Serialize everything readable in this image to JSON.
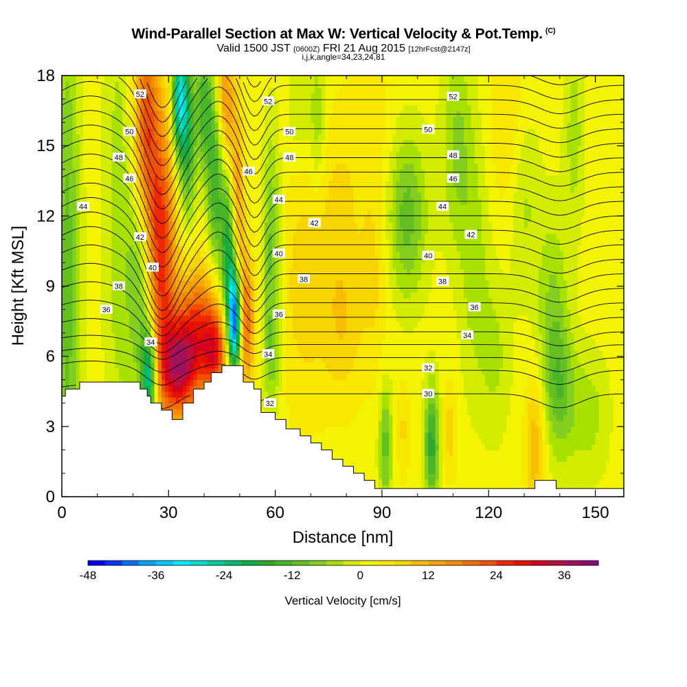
{
  "header": {
    "title": "Wind-Parallel Section at Max W: Vertical Velocity & Pot.Temp.",
    "copyright": "(C)",
    "valid_prefix": "Valid 1500 JST",
    "valid_utc": "(0600Z)",
    "valid_date": "FRI 21 Aug 2015",
    "forecast": "[12hrFcst@2147z]",
    "indices": "i,j,k,angle=34,23,24,81"
  },
  "chart_data": {
    "type": "heatmap",
    "xlabel": "Distance [nm]",
    "ylabel": "Height [Kft MSL]",
    "xlim": [
      0,
      158
    ],
    "ylim": [
      0,
      18
    ],
    "x_ticks": [
      "0",
      "30",
      "60",
      "90",
      "120",
      "150"
    ],
    "x_tick_values": [
      0,
      30,
      60,
      90,
      120,
      150
    ],
    "y_ticks": [
      "0",
      "3",
      "6",
      "9",
      "12",
      "15",
      "18"
    ],
    "y_tick_values": [
      0,
      3,
      6,
      9,
      12,
      15,
      18
    ],
    "colorbar": {
      "label": "Vertical Velocity [cm/s]",
      "ticks": [
        "-48",
        "-36",
        "-24",
        "-12",
        "0",
        "12",
        "24",
        "36"
      ],
      "tick_values": [
        -48,
        -36,
        -24,
        -12,
        0,
        12,
        24,
        36
      ],
      "levels": [
        -48,
        -45,
        -42,
        -39,
        -36,
        -33,
        -30,
        -27,
        -24,
        -21,
        -18,
        -15,
        -12,
        -9,
        -6,
        -3,
        0,
        3,
        6,
        9,
        12,
        15,
        18,
        21,
        24,
        27,
        30,
        33,
        36,
        39,
        42
      ],
      "colors": [
        "#0000f0",
        "#0035f5",
        "#0070f8",
        "#00a4f8",
        "#00c8ff",
        "#00ecf8",
        "#00dcd0",
        "#00cca0",
        "#00bc70",
        "#10ae40",
        "#30a830",
        "#48b428",
        "#64c020",
        "#84ce20",
        "#a8e000",
        "#d4ec00",
        "#f4f400",
        "#f8e800",
        "#f8d400",
        "#f8bc00",
        "#f8a400",
        "#f48c00",
        "#f07000",
        "#f05000",
        "#f02800",
        "#e81000",
        "#d40020",
        "#b81040",
        "#a0105c",
        "#8c0878"
      ]
    },
    "terrain": [
      [
        0,
        4.3
      ],
      [
        1,
        4.3
      ],
      [
        1,
        4.6
      ],
      [
        5,
        4.6
      ],
      [
        5,
        4.9
      ],
      [
        15,
        4.9
      ],
      [
        15,
        4.9
      ],
      [
        22,
        4.9
      ],
      [
        22,
        4.6
      ],
      [
        24,
        4.6
      ],
      [
        24,
        4.3
      ],
      [
        25,
        4.3
      ],
      [
        25,
        4.0
      ],
      [
        28,
        4.0
      ],
      [
        28,
        3.7
      ],
      [
        31,
        3.7
      ],
      [
        31,
        3.3
      ],
      [
        34,
        3.3
      ],
      [
        34,
        4.0
      ],
      [
        37,
        4.0
      ],
      [
        37,
        4.6
      ],
      [
        40,
        4.6
      ],
      [
        40,
        4.9
      ],
      [
        42,
        4.9
      ],
      [
        42,
        5.3
      ],
      [
        45,
        5.3
      ],
      [
        45,
        5.6
      ],
      [
        51,
        5.6
      ],
      [
        51,
        4.9
      ],
      [
        54,
        4.9
      ],
      [
        54,
        4.6
      ],
      [
        56,
        4.6
      ],
      [
        56,
        3.6
      ],
      [
        60,
        3.6
      ],
      [
        60,
        3.3
      ],
      [
        63,
        3.3
      ],
      [
        63,
        2.9
      ],
      [
        67,
        2.9
      ],
      [
        67,
        2.6
      ],
      [
        70,
        2.6
      ],
      [
        70,
        2.3
      ],
      [
        73,
        2.3
      ],
      [
        73,
        2.0
      ],
      [
        76,
        2.0
      ],
      [
        76,
        1.6
      ],
      [
        79,
        1.6
      ],
      [
        79,
        1.3
      ],
      [
        82,
        1.3
      ],
      [
        82,
        1.0
      ],
      [
        85,
        1.0
      ],
      [
        85,
        0.7
      ],
      [
        88,
        0.7
      ],
      [
        88,
        0.35
      ],
      [
        91,
        0.35
      ],
      [
        91,
        0.35
      ],
      [
        133,
        0.35
      ],
      [
        133,
        0.7
      ],
      [
        139,
        0.7
      ],
      [
        139,
        0.35
      ],
      [
        142,
        0.35
      ],
      [
        142,
        0.35
      ],
      [
        158,
        0.35
      ]
    ],
    "features": [
      {
        "x": 1.5,
        "z": 9,
        "w": -12,
        "sx": 2.5,
        "sz": 9
      },
      {
        "x": 16,
        "z": 12,
        "w": -6,
        "sx": 3,
        "sz": 8
      },
      {
        "x": 22,
        "z": 9.5,
        "w": -12,
        "sx": 2.5,
        "sz": 3.5
      },
      {
        "x": 24.5,
        "z": 5.2,
        "w": -28,
        "sx": 1.6,
        "sz": 1.5
      },
      {
        "x": 28,
        "z": 10.5,
        "w": 24,
        "sx": 2.8,
        "sz": 4
      },
      {
        "x": 23.5,
        "z": 15.8,
        "w": 21,
        "sx": 2.5,
        "sz": 3.5
      },
      {
        "x": 33,
        "z": 17,
        "w": -30,
        "sx": 1.4,
        "sz": 1.8
      },
      {
        "x": 35.5,
        "z": 15.5,
        "w": -18,
        "sx": 1.5,
        "sz": 2.5
      },
      {
        "x": 33,
        "z": 5.5,
        "w": 30,
        "sx": 4,
        "sz": 1.5
      },
      {
        "x": 38,
        "z": 7.5,
        "w": 18,
        "sx": 4,
        "sz": 1.8
      },
      {
        "x": 43,
        "z": 6.2,
        "w": 22,
        "sx": 2.5,
        "sz": 1.3
      },
      {
        "x": 48.5,
        "z": 7.5,
        "w": -42,
        "sx": 1.2,
        "sz": 1.5
      },
      {
        "x": 47,
        "z": 10.5,
        "w": -24,
        "sx": 1.6,
        "sz": 2.5
      },
      {
        "x": 43,
        "z": 13.5,
        "w": -16,
        "sx": 1.6,
        "sz": 2.5
      },
      {
        "x": 40,
        "z": 16.8,
        "w": -15,
        "sx": 1.6,
        "sz": 2
      },
      {
        "x": 52,
        "z": 7.5,
        "w": 18,
        "sx": 1.5,
        "sz": 2
      },
      {
        "x": 49,
        "z": 12.5,
        "w": 16,
        "sx": 1.5,
        "sz": 3
      },
      {
        "x": 46,
        "z": 17,
        "w": 14,
        "sx": 1.6,
        "sz": 2
      },
      {
        "x": 59,
        "z": 10.5,
        "w": -12,
        "sx": 1.8,
        "sz": 3.5
      },
      {
        "x": 59,
        "z": 6,
        "w": -6,
        "sx": 2,
        "sz": 1.5
      },
      {
        "x": 67,
        "z": 17,
        "w": -5,
        "sx": 2.5,
        "sz": 2
      },
      {
        "x": 72,
        "z": 16,
        "w": -7,
        "sx": 1.5,
        "sz": 2
      },
      {
        "x": 68,
        "z": 9,
        "w": 6,
        "sx": 5,
        "sz": 4
      },
      {
        "x": 79,
        "z": 7.5,
        "w": 7,
        "sx": 4,
        "sz": 2.5
      },
      {
        "x": 78,
        "z": 13,
        "w": 4,
        "sx": 4,
        "sz": 2.5
      },
      {
        "x": 88,
        "z": 9.5,
        "w": 5,
        "sx": 3,
        "sz": 3
      },
      {
        "x": 97,
        "z": 12,
        "w": -12,
        "sx": 4,
        "sz": 2.5
      },
      {
        "x": 91,
        "z": 2.2,
        "w": -12,
        "sx": 1.3,
        "sz": 1.8
      },
      {
        "x": 96,
        "z": 2.8,
        "w": 5,
        "sx": 1.3,
        "sz": 1.5
      },
      {
        "x": 104,
        "z": 2.2,
        "w": -18,
        "sx": 1.5,
        "sz": 1.8
      },
      {
        "x": 109,
        "z": 2.8,
        "w": 6,
        "sx": 1.5,
        "sz": 1.5
      },
      {
        "x": 111,
        "z": 15,
        "w": -8,
        "sx": 3,
        "sz": 3
      },
      {
        "x": 116,
        "z": 10,
        "w": -6,
        "sx": 3,
        "sz": 4
      },
      {
        "x": 122,
        "z": 6,
        "w": -5,
        "sx": 3,
        "sz": 2.5
      },
      {
        "x": 130,
        "z": 13,
        "w": -6,
        "sx": 3,
        "sz": 3
      },
      {
        "x": 138,
        "z": 8,
        "w": -8,
        "sx": 3,
        "sz": 3
      },
      {
        "x": 133,
        "z": 2.2,
        "w": 10,
        "sx": 2,
        "sz": 2
      },
      {
        "x": 140,
        "z": 4.5,
        "w": -10,
        "sx": 3,
        "sz": 2
      },
      {
        "x": 148,
        "z": 3.5,
        "w": -6,
        "sx": 4,
        "sz": 2
      },
      {
        "x": 144,
        "z": 15.5,
        "w": -6,
        "sx": 2,
        "sz": 3
      },
      {
        "x": 126,
        "z": 16,
        "w": 5,
        "sx": 4,
        "sz": 3
      },
      {
        "x": 87,
        "z": 16,
        "w": 3,
        "sx": 5,
        "sz": 3
      }
    ],
    "theta_levels": [
      30,
      31,
      32,
      33,
      34,
      35,
      36,
      37,
      38,
      39,
      40,
      41,
      42,
      43,
      44,
      45,
      46,
      47,
      48,
      49,
      50,
      51,
      52,
      53
    ],
    "theta_labels": [
      {
        "text": "52",
        "x": 22,
        "z": 17.2
      },
      {
        "text": "50",
        "x": 19,
        "z": 15.6
      },
      {
        "text": "48",
        "x": 16,
        "z": 14.5
      },
      {
        "text": "46",
        "x": 19,
        "z": 13.6
      },
      {
        "text": "44",
        "x": 6,
        "z": 12.4
      },
      {
        "text": "42",
        "x": 22,
        "z": 11.1
      },
      {
        "text": "40",
        "x": 25.5,
        "z": 9.8
      },
      {
        "text": "38",
        "x": 16,
        "z": 9.0
      },
      {
        "text": "36",
        "x": 12.5,
        "z": 8.0
      },
      {
        "text": "34",
        "x": 25,
        "z": 6.6
      },
      {
        "text": "52",
        "x": 58,
        "z": 16.9
      },
      {
        "text": "50",
        "x": 64,
        "z": 15.6
      },
      {
        "text": "48",
        "x": 64,
        "z": 14.5
      },
      {
        "text": "46",
        "x": 52.5,
        "z": 13.9
      },
      {
        "text": "44",
        "x": 61,
        "z": 12.7
      },
      {
        "text": "42",
        "x": 71,
        "z": 11.7
      },
      {
        "text": "40",
        "x": 61,
        "z": 10.4
      },
      {
        "text": "38",
        "x": 68,
        "z": 9.3
      },
      {
        "text": "36",
        "x": 61,
        "z": 7.8
      },
      {
        "text": "34",
        "x": 58,
        "z": 6.1
      },
      {
        "text": "32",
        "x": 58.5,
        "z": 4.0
      },
      {
        "text": "52",
        "x": 110,
        "z": 17.1
      },
      {
        "text": "50",
        "x": 103,
        "z": 15.7
      },
      {
        "text": "48",
        "x": 110,
        "z": 14.6
      },
      {
        "text": "46",
        "x": 110,
        "z": 13.6
      },
      {
        "text": "44",
        "x": 107,
        "z": 12.4
      },
      {
        "text": "42",
        "x": 115,
        "z": 11.2
      },
      {
        "text": "40",
        "x": 103,
        "z": 10.3
      },
      {
        "text": "38",
        "x": 107,
        "z": 9.2
      },
      {
        "text": "36",
        "x": 116,
        "z": 8.1
      },
      {
        "text": "34",
        "x": 114,
        "z": 6.9
      },
      {
        "text": "32",
        "x": 103,
        "z": 5.5
      },
      {
        "text": "30",
        "x": 103,
        "z": 4.4
      }
    ]
  }
}
